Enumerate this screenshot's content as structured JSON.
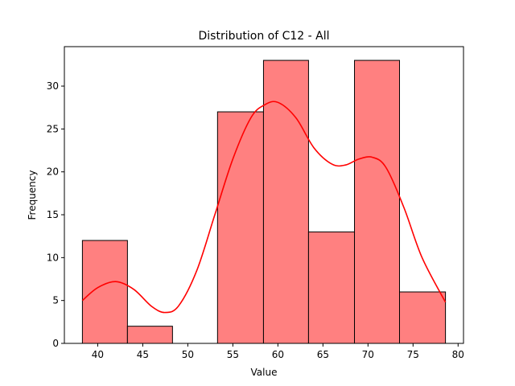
{
  "chart_data": {
    "type": "bar",
    "title": "Distribution of C12 - All",
    "xlabel": "Value",
    "ylabel": "Frequency",
    "xlim": [
      36.3,
      80.6
    ],
    "ylim": [
      0,
      34.6
    ],
    "xticks": [
      40,
      45,
      50,
      55,
      60,
      65,
      70,
      75,
      80
    ],
    "yticks": [
      0,
      5,
      10,
      15,
      20,
      25,
      30
    ],
    "bins": [
      {
        "x0": 38.3,
        "x1": 43.3,
        "count": 12
      },
      {
        "x0": 43.3,
        "x1": 48.3,
        "count": 2
      },
      {
        "x0": 48.3,
        "x1": 53.3,
        "count": 0
      },
      {
        "x0": 53.3,
        "x1": 58.4,
        "count": 27
      },
      {
        "x0": 58.4,
        "x1": 63.4,
        "count": 33
      },
      {
        "x0": 63.4,
        "x1": 68.5,
        "count": 13
      },
      {
        "x0": 68.5,
        "x1": 73.5,
        "count": 33
      },
      {
        "x0": 73.5,
        "x1": 78.6,
        "count": 6
      }
    ],
    "kde": {
      "x": [
        38.3,
        40,
        42,
        44,
        46,
        47.5,
        49,
        51,
        53,
        55,
        57,
        58.5,
        60,
        62,
        64,
        66,
        67.5,
        69,
        70.5,
        72,
        74,
        76,
        78.6
      ],
      "y": [
        5,
        6.5,
        7.2,
        6.3,
        4.3,
        3.6,
        4.4,
        8.5,
        15,
        21.5,
        26.3,
        27.8,
        28.1,
        26.3,
        22.8,
        20.9,
        20.8,
        21.5,
        21.7,
        20.5,
        15.8,
        10,
        4.8
      ]
    },
    "colors": {
      "bar_fill": "#ff8080",
      "bar_edge": "#000000",
      "kde_line": "#ff0000"
    },
    "grid": false,
    "legend": "none"
  }
}
